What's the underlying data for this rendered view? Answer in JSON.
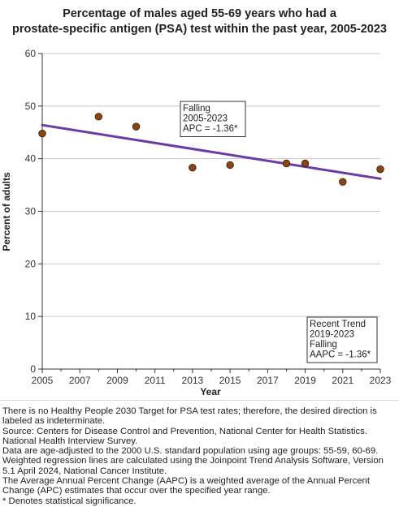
{
  "chart_data": {
    "type": "scatter",
    "title_lines": [
      "Percentage of males aged 55-69 years who had a",
      "prostate-specific antigen (PSA) test within the past year, 2005-2023"
    ],
    "xlabel": "Year",
    "ylabel": "Percent of adults",
    "xlim": [
      2005,
      2023
    ],
    "ylim": [
      0,
      60
    ],
    "x_ticks": [
      2005,
      2007,
      2009,
      2011,
      2013,
      2015,
      2017,
      2019,
      2021,
      2023
    ],
    "y_ticks": [
      0,
      10,
      20,
      30,
      40,
      50,
      60
    ],
    "grid": "horizontal",
    "colors": {
      "point": "#8b4513",
      "trend": "#6a3aa8",
      "grid": "#c8c8c8"
    },
    "points": [
      {
        "x": 2005,
        "y": 44.8
      },
      {
        "x": 2008,
        "y": 48.0
      },
      {
        "x": 2010,
        "y": 46.1
      },
      {
        "x": 2013,
        "y": 38.3
      },
      {
        "x": 2015,
        "y": 38.8
      },
      {
        "x": 2018,
        "y": 39.1
      },
      {
        "x": 2019,
        "y": 39.1
      },
      {
        "x": 2021,
        "y": 35.6
      },
      {
        "x": 2023,
        "y": 38.0
      }
    ],
    "trend_line": {
      "x": [
        2005,
        2023
      ],
      "y": [
        46.4,
        36.2
      ]
    },
    "annotations": {
      "segment": [
        "Falling",
        "2005-2023",
        "APC = -1.36*"
      ],
      "recent": [
        "Recent Trend",
        "2019-2023",
        "Falling",
        "AAPC = -1.36*"
      ]
    }
  },
  "footnotes": [
    "There is no Healthy People 2030 Target for PSA test rates; therefore, the desired direction is labeled as indeterminate.",
    "Source: Centers for Disease Control and Prevention, National Center for Health Statistics. National Health Interview Survey.",
    "Data are age-adjusted to the 2000 U.S. standard population using age groups: 55-59, 60-69.",
    "Weighted regression lines are calculated using the Joinpoint Trend Analysis Software, Version 5.1 April 2024, National Cancer Institute.",
    "The Average Annual Percent Change (AAPC) is a weighted average of the Annual Percent Change (APC) estimates that occur over the specified year range.",
    "* Denotes statistical significance."
  ]
}
